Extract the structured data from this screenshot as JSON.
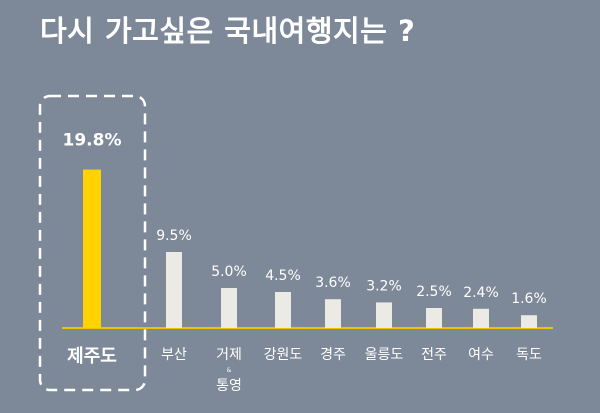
{
  "title": "다시 가고싶은 국내여행지는 ?",
  "colors": {
    "background": "#7d8898",
    "highlight": "#ffd200",
    "bar": "#ebeae4",
    "baseline": "#e8c300",
    "dashed_box": "#ffffff"
  },
  "chart_data": {
    "type": "bar",
    "title": "다시 가고싶은 국내여행지는 ?",
    "categories": [
      "제주도",
      "부산",
      "거제 & 통영",
      "강원도",
      "경주",
      "울릉도",
      "전주",
      "여수",
      "독도"
    ],
    "category_lines": [
      [
        "제주도"
      ],
      [
        "부산"
      ],
      [
        "거제",
        "&",
        "통영"
      ],
      [
        "강원도"
      ],
      [
        "경주"
      ],
      [
        "울릉도"
      ],
      [
        "전주"
      ],
      [
        "여수"
      ],
      [
        "독도"
      ]
    ],
    "values": [
      19.8,
      9.5,
      5.0,
      4.5,
      3.6,
      3.2,
      2.5,
      2.4,
      1.6
    ],
    "value_labels": [
      "19.8%",
      "9.5%",
      "5.0%",
      "4.5%",
      "3.6%",
      "3.2%",
      "2.5%",
      "2.4%",
      "1.6%"
    ],
    "highlight_index": 0,
    "unit": "%",
    "ylim": [
      0,
      20
    ],
    "grid": false,
    "legend": "none"
  }
}
